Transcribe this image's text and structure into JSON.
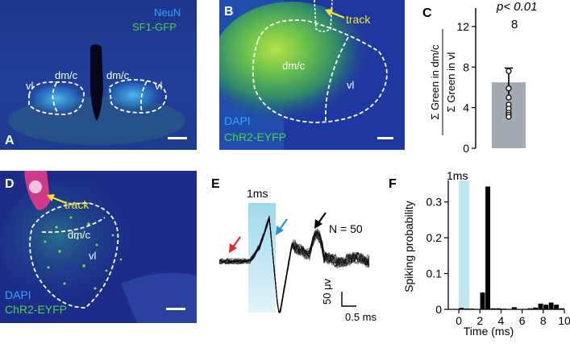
{
  "figure": {
    "panel_a": {
      "label": "A",
      "stain_1": "NeuN",
      "stain_2": "SF1-GFP",
      "region_left_dmc": "dm/c",
      "region_right_dmc": "dm/c",
      "region_left_vl": "vl",
      "region_right_vl": "vl"
    },
    "panel_b": {
      "label": "B",
      "stain_1": "DAPI",
      "stain_2": "ChR2-EYFP",
      "track": "track",
      "region_dmc": "dm/c",
      "region_vl": "vl"
    },
    "panel_c": {
      "label": "C",
      "pvalue": "p< 0.01",
      "ylabel_numerator": "Σ Green in dm/c",
      "ylabel_denominator": "Σ Green in vl",
      "n_label": "8"
    },
    "panel_d": {
      "label": "D",
      "stain_1": "DAPI",
      "stain_2": "ChR2-EYFP",
      "track": "track",
      "region_dmc": "dm/c",
      "region_vl": "vl"
    },
    "panel_e": {
      "label": "E",
      "stim_label": "1ms",
      "n_label": "N = 50",
      "scale_y": "50 μv",
      "scale_x": "0.5 ms"
    },
    "panel_f": {
      "label": "F",
      "stim_label": "1ms"
    }
  },
  "colors": {
    "neun_blue": "#29a8ff",
    "gfp_green": "#4fd14a",
    "track_yellow": "#f2e82a",
    "bar_gray": "#a3aab1",
    "stim_shade": "#bfe6f2",
    "arrow_red": "#e8262c",
    "arrow_blue": "#2b8fd6"
  },
  "chart_data": [
    {
      "type": "bar",
      "panel": "C",
      "categories": [
        ""
      ],
      "values": [
        6.5
      ],
      "error": 1.4,
      "points": [
        7.6,
        5.9,
        5.0,
        4.3,
        3.9,
        3.5,
        3.3,
        3.1
      ],
      "ylabel": "Σ Green in dm/c / Σ Green in vl",
      "yticks": [
        0,
        4,
        8,
        12
      ],
      "ytick_labels": [
        "0",
        "4",
        "8",
        "12"
      ],
      "ylim": [
        0,
        13.5
      ]
    },
    {
      "type": "bar",
      "panel": "F",
      "bin_width": 0.5,
      "bins": [
        0,
        0.5,
        1,
        1.5,
        2,
        2.5,
        3,
        3.5,
        4,
        4.5,
        5,
        5.5,
        6,
        6.5,
        7,
        7.5,
        8,
        8.5,
        9,
        9.5
      ],
      "values": [
        0.004,
        0.002,
        0.002,
        0.001,
        0.047,
        0.343,
        0.003,
        0.003,
        0.002,
        0.001,
        0.006,
        0.001,
        0.001,
        0.003,
        0.005,
        0.016,
        0.013,
        0.019,
        0.013,
        0.003
      ],
      "xlabel": "Time (ms)",
      "ylabel": "Spiking probability",
      "xticks": [
        0,
        2,
        4,
        6,
        8,
        10
      ],
      "xtick_labels": [
        "0",
        "2",
        "4",
        "6",
        "8",
        "10"
      ],
      "yticks": [
        0,
        0.1,
        0.2,
        0.3
      ],
      "ytick_labels": [
        "0",
        "0.1",
        "0.2",
        "0.3"
      ],
      "xlim": [
        -1,
        10
      ],
      "ylim": [
        0,
        0.36
      ],
      "stim_window": [
        0,
        1
      ]
    }
  ]
}
